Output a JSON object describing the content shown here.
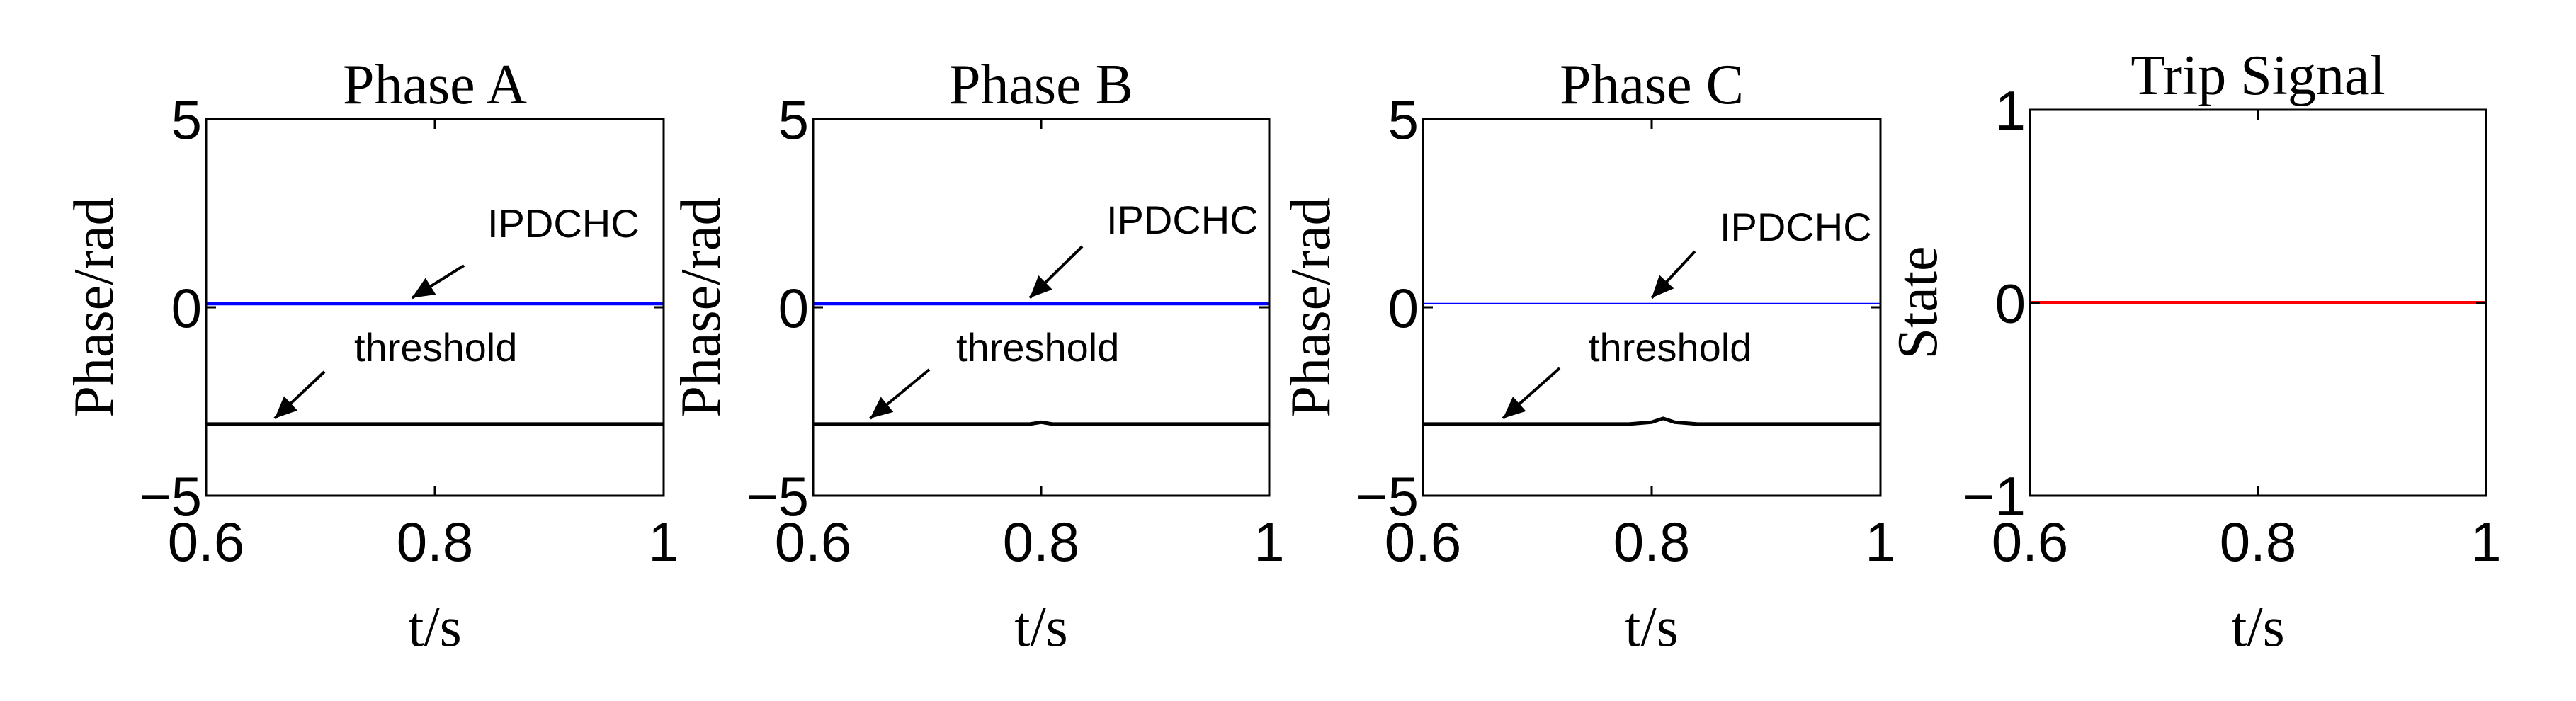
{
  "chart_data": [
    {
      "type": "line",
      "title": "Phase A",
      "xlabel": "t/s",
      "ylabel": "Phase/rad",
      "xlim": [
        0.6,
        1
      ],
      "ylim": [
        -5,
        5
      ],
      "xticks": [
        "0.6",
        "0.8",
        "1"
      ],
      "yticks": [
        "−5",
        "0",
        "5"
      ],
      "grid": false,
      "series": [
        {
          "name": "IPDCHC",
          "color": "#0000ff",
          "x": [
            0.6,
            1
          ],
          "y": [
            0.1,
            0.1
          ]
        },
        {
          "name": "threshold",
          "color": "#000000",
          "x": [
            0.6,
            1
          ],
          "y": [
            -3.1,
            -3.1
          ]
        }
      ],
      "annotations": [
        {
          "text": "IPDCHC",
          "target_series": "IPDCHC",
          "x": 0.78,
          "y": 0.1
        },
        {
          "text": "threshold",
          "target_series": "threshold",
          "x": 0.66,
          "y": -3.1
        }
      ]
    },
    {
      "type": "line",
      "title": "Phase B",
      "xlabel": "t/s",
      "ylabel": "Phase/rad",
      "xlim": [
        0.6,
        1
      ],
      "ylim": [
        -5,
        5
      ],
      "xticks": [
        "0.6",
        "0.8",
        "1"
      ],
      "yticks": [
        "−5",
        "0",
        "5"
      ],
      "grid": false,
      "series": [
        {
          "name": "IPDCHC",
          "color": "#0000ff",
          "x": [
            0.6,
            1
          ],
          "y": [
            0.1,
            0.1
          ]
        },
        {
          "name": "threshold",
          "color": "#000000",
          "x": [
            0.6,
            0.79,
            0.8,
            0.81,
            1
          ],
          "y": [
            -3.1,
            -3.1,
            -3.05,
            -3.1,
            -3.1
          ]
        }
      ],
      "annotations": [
        {
          "text": "IPDCHC",
          "target_series": "IPDCHC",
          "x": 0.79,
          "y": 0.1
        },
        {
          "text": "threshold",
          "target_series": "threshold",
          "x": 0.65,
          "y": -3.1
        }
      ]
    },
    {
      "type": "line",
      "title": "Phase C",
      "xlabel": "t/s",
      "ylabel": "Phase/rad",
      "xlim": [
        0.6,
        1
      ],
      "ylim": [
        -5,
        5
      ],
      "xticks": [
        "0.6",
        "0.8",
        "1"
      ],
      "yticks": [
        "−5",
        "0",
        "5"
      ],
      "grid": false,
      "series": [
        {
          "name": "IPDCHC",
          "color": "#0000ff",
          "x": [
            0.6,
            1
          ],
          "y": [
            0.1,
            0.1
          ]
        },
        {
          "name": "threshold",
          "color": "#000000",
          "x": [
            0.6,
            0.78,
            0.8,
            0.81,
            0.82,
            0.84,
            1
          ],
          "y": [
            -3.1,
            -3.1,
            -3.05,
            -2.95,
            -3.05,
            -3.1,
            -3.1
          ]
        }
      ],
      "annotations": [
        {
          "text": "IPDCHC",
          "target_series": "IPDCHC",
          "x": 0.8,
          "y": 0.1
        },
        {
          "text": "threshold",
          "target_series": "threshold",
          "x": 0.67,
          "y": -3.1
        }
      ]
    },
    {
      "type": "line",
      "title": "Trip Signal",
      "xlabel": "t/s",
      "ylabel": "State",
      "xlim": [
        0.6,
        1
      ],
      "ylim": [
        -1,
        1
      ],
      "xticks": [
        "0.6",
        "0.8",
        "1"
      ],
      "yticks": [
        "−1",
        "0",
        "1"
      ],
      "grid": false,
      "series": [
        {
          "color": "#ff0000",
          "x": [
            0.6,
            1
          ],
          "y": [
            0,
            0
          ]
        }
      ],
      "annotations": []
    }
  ]
}
